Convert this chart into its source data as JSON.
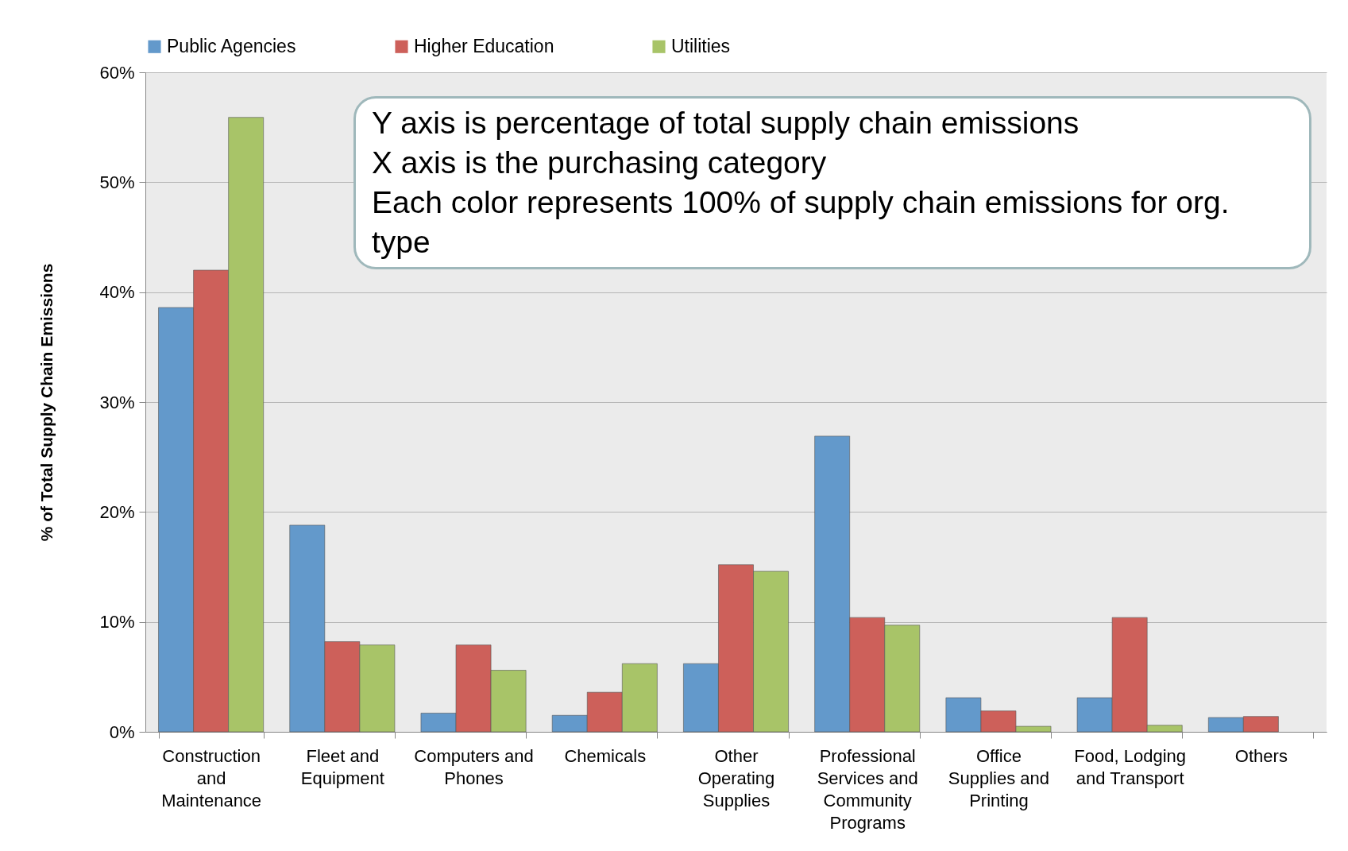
{
  "chart_data": {
    "type": "bar",
    "ylabel": "% of Total Supply Chain Emissions",
    "categories": [
      "Construction and Maintenance",
      "Fleet and Equipment",
      "Computers and Phones",
      "Chemicals",
      "Other Operating Supplies",
      "Professional Services and Community Programs",
      "Office Supplies and Printing",
      "Food, Lodging and Transport",
      "Others"
    ],
    "series": [
      {
        "name": "Public Agencies",
        "color": "#6399cb",
        "values": [
          38.6,
          18.8,
          1.7,
          1.5,
          6.2,
          26.9,
          3.1,
          3.1,
          1.3
        ]
      },
      {
        "name": "Higher Education",
        "color": "#cd605a",
        "values": [
          42.0,
          8.2,
          7.9,
          3.6,
          15.2,
          10.4,
          1.9,
          10.4,
          1.4
        ]
      },
      {
        "name": "Utilities",
        "color": "#a8c468",
        "values": [
          55.9,
          7.9,
          5.6,
          6.2,
          14.6,
          9.7,
          0.5,
          0.6,
          null
        ]
      }
    ],
    "ylim": [
      0,
      60
    ],
    "yticks": [
      {
        "value": 0,
        "label": "0%"
      },
      {
        "value": 10,
        "label": "10%"
      },
      {
        "value": 20,
        "label": "20%"
      },
      {
        "value": 30,
        "label": "30%"
      },
      {
        "value": 40,
        "label": "40%"
      },
      {
        "value": 50,
        "label": "50%"
      },
      {
        "value": 60,
        "label": "60%"
      }
    ],
    "grid": "y",
    "legend": "top",
    "annotations": [
      "Y axis is percentage of total supply chain emissions\nX axis is the purchasing category\nEach color represents 100% of supply chain emissions for org. type"
    ]
  }
}
